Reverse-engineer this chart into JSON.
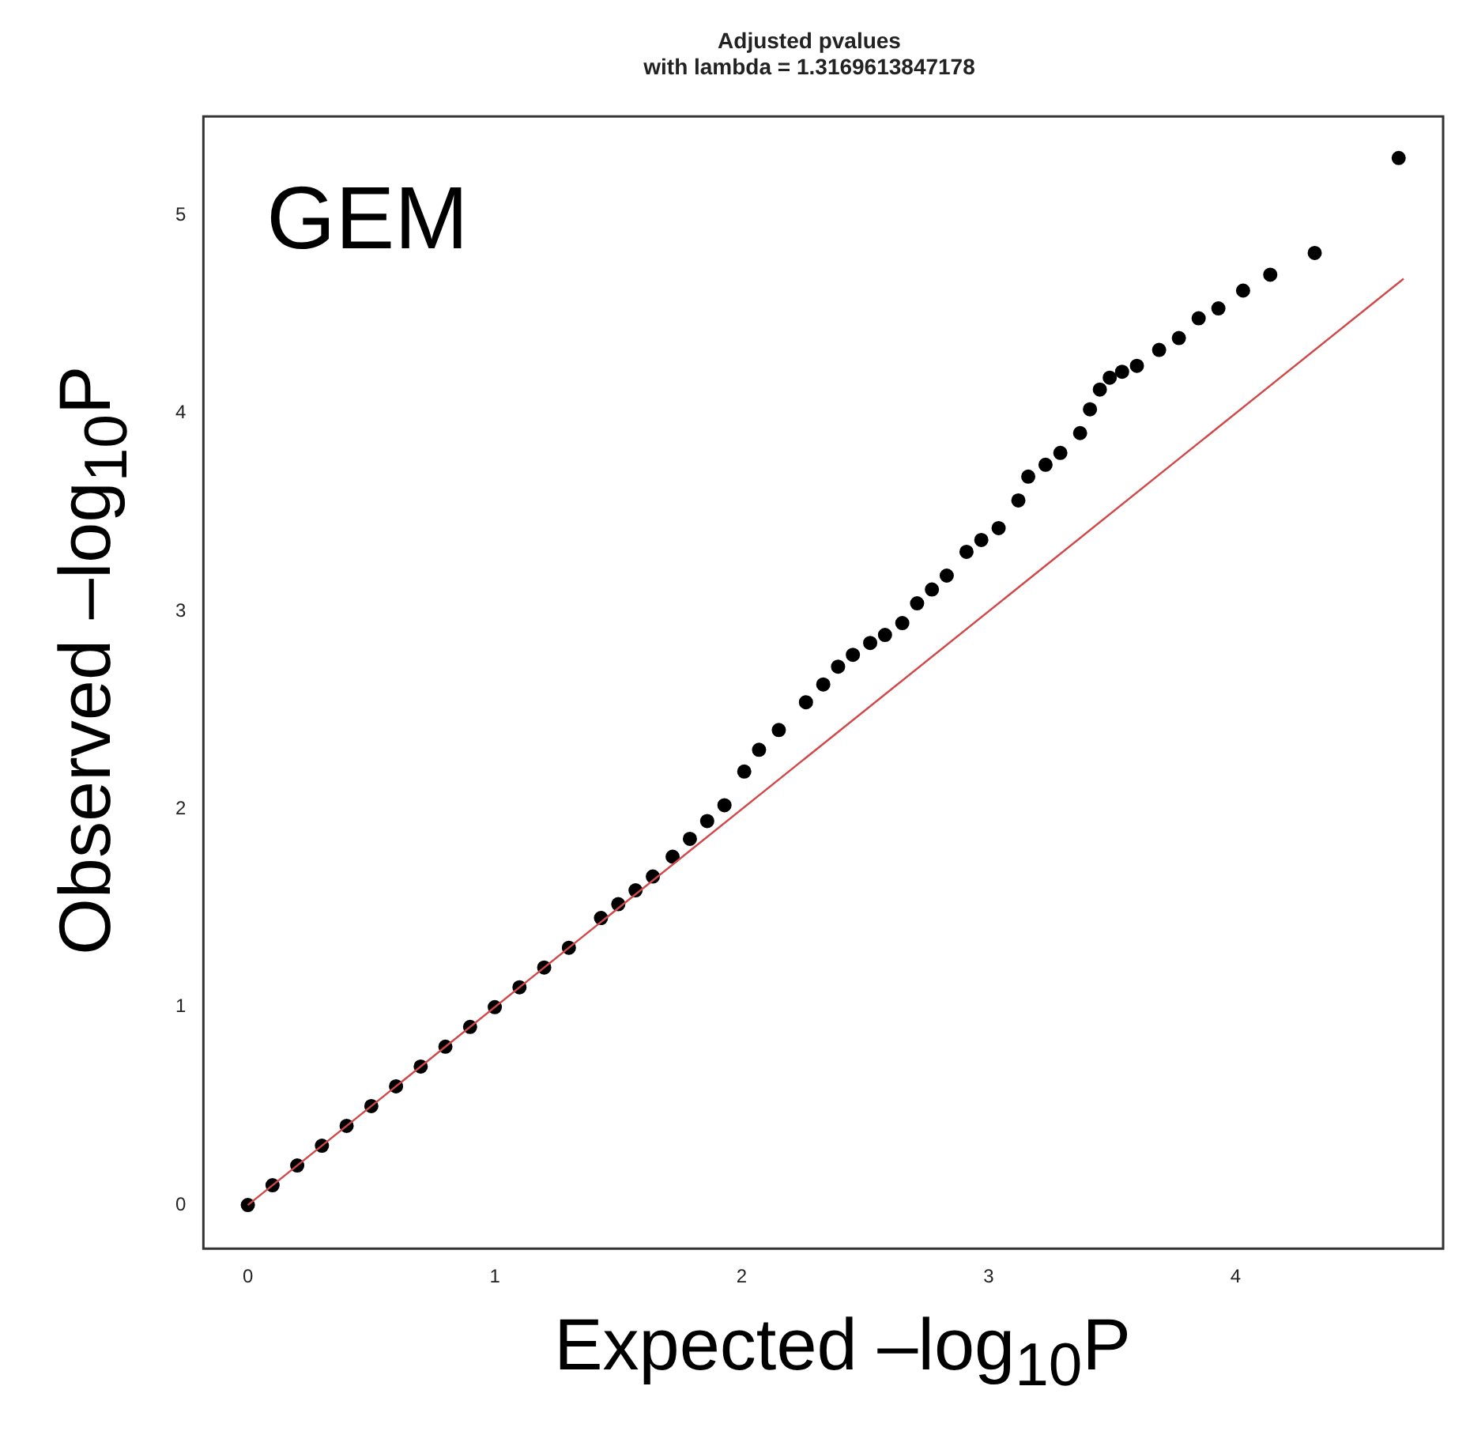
{
  "chart_data": {
    "type": "scatter",
    "title": "Adjusted pvalues",
    "subtitle": "with lambda = 1.3169613847178",
    "xlabel": "Expected –log$_{10}$P",
    "ylabel": "Observed –log$_{10}$P",
    "annotations": [
      "GEM"
    ],
    "xlim": [
      -0.18,
      4.84
    ],
    "ylim": [
      -0.22,
      5.5
    ],
    "xticks": [
      0,
      1,
      2,
      3,
      4
    ],
    "yticks": [
      0,
      1,
      2,
      3,
      4,
      5
    ],
    "grid": false,
    "legend": false,
    "marker": "circle",
    "series": [
      {
        "type": "scatter",
        "color": "#000000",
        "x": [
          0,
          0.1,
          0.2,
          0.3,
          0.4,
          0.5,
          0.6,
          0.7,
          0.8,
          0.9,
          1.0,
          1.1,
          1.2,
          1.3,
          1.43,
          1.5,
          1.57,
          1.64,
          1.72,
          1.79,
          1.86,
          1.93,
          2.01,
          2.07,
          2.15,
          2.26,
          2.33,
          2.39,
          2.45,
          2.52,
          2.58,
          2.65,
          2.71,
          2.77,
          2.83,
          2.91,
          2.97,
          3.04,
          3.12,
          3.16,
          3.23,
          3.29,
          3.37,
          3.41,
          3.45,
          3.49,
          3.54,
          3.6,
          3.69,
          3.77,
          3.85,
          3.93,
          4.03,
          4.14,
          4.32,
          4.66
        ],
        "values": [
          0,
          0.1,
          0.2,
          0.3,
          0.4,
          0.5,
          0.6,
          0.7,
          0.8,
          0.9,
          1.0,
          1.1,
          1.2,
          1.3,
          1.45,
          1.52,
          1.59,
          1.66,
          1.76,
          1.85,
          1.94,
          2.02,
          2.19,
          2.3,
          2.4,
          2.54,
          2.63,
          2.72,
          2.78,
          2.84,
          2.88,
          2.94,
          3.04,
          3.11,
          3.18,
          3.3,
          3.36,
          3.42,
          3.56,
          3.68,
          3.74,
          3.8,
          3.9,
          4.02,
          4.12,
          4.18,
          4.21,
          4.24,
          4.32,
          4.38,
          4.48,
          4.53,
          4.62,
          4.7,
          4.81,
          5.29
        ]
      },
      {
        "type": "line",
        "color": "#d04848",
        "marker": "none",
        "x": [
          0,
          4.68
        ],
        "values": [
          0,
          4.68
        ]
      }
    ]
  }
}
